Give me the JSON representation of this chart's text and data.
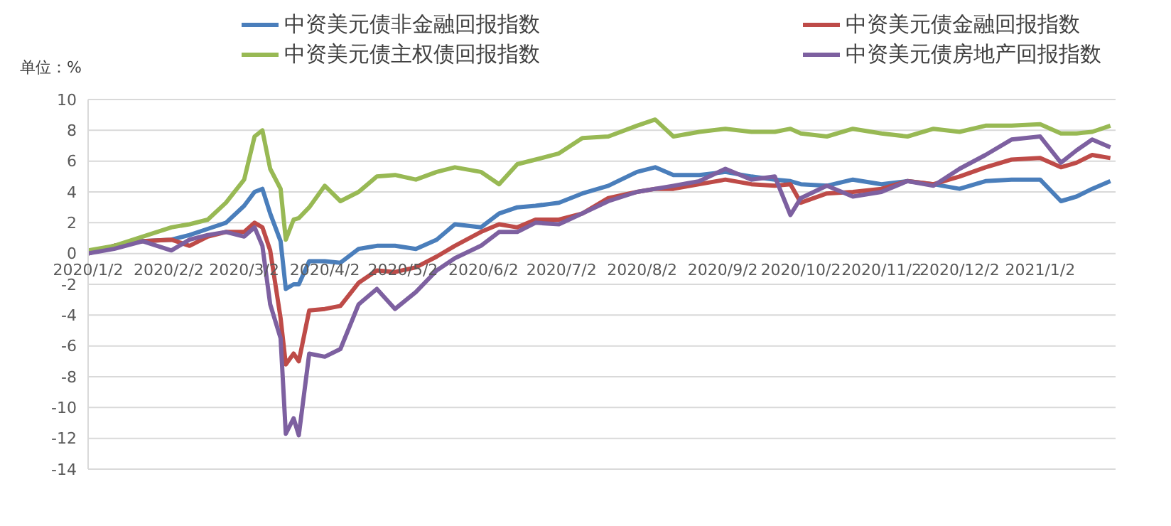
{
  "chart_data": {
    "type": "line",
    "ylabel": "单位：%",
    "x": [
      "2020-01-02",
      "2020-01-12",
      "2020-01-23",
      "2020-02-03",
      "2020-02-10",
      "2020-02-17",
      "2020-02-24",
      "2020-03-02",
      "2020-03-06",
      "2020-03-09",
      "2020-03-12",
      "2020-03-16",
      "2020-03-18",
      "2020-03-21",
      "2020-03-23",
      "2020-03-27",
      "2020-04-02",
      "2020-04-08",
      "2020-04-15",
      "2020-04-22",
      "2020-04-29",
      "2020-05-07",
      "2020-05-15",
      "2020-05-22",
      "2020-06-01",
      "2020-06-08",
      "2020-06-15",
      "2020-06-22",
      "2020-07-01",
      "2020-07-10",
      "2020-07-20",
      "2020-07-31",
      "2020-08-07",
      "2020-08-14",
      "2020-08-24",
      "2020-09-03",
      "2020-09-13",
      "2020-09-22",
      "2020-09-28",
      "2020-10-02",
      "2020-10-12",
      "2020-10-22",
      "2020-11-02",
      "2020-11-12",
      "2020-11-22",
      "2020-12-02",
      "2020-12-12",
      "2020-12-22",
      "2021-01-02",
      "2021-01-10",
      "2021-01-16",
      "2021-01-22",
      "2021-01-29"
    ],
    "series": [
      {
        "name": "中资美元债非金融回报指数",
        "color": "#4a7ebb",
        "values": [
          0,
          0.5,
          0.8,
          0.9,
          1.2,
          1.6,
          2.0,
          3.1,
          4.0,
          4.2,
          2.6,
          0.8,
          -2.3,
          -2.0,
          -2.0,
          -0.5,
          -0.5,
          -0.6,
          0.3,
          0.5,
          0.5,
          0.3,
          0.9,
          1.9,
          1.7,
          2.6,
          3.0,
          3.1,
          3.3,
          3.9,
          4.4,
          5.3,
          5.6,
          5.1,
          5.1,
          5.3,
          5.0,
          4.8,
          4.7,
          4.5,
          4.4,
          4.8,
          4.5,
          4.7,
          4.5,
          4.2,
          4.7,
          4.8,
          4.8,
          3.4,
          3.7,
          4.2,
          4.7
        ]
      },
      {
        "name": "中资美元债金融回报指数",
        "color": "#be4b48",
        "values": [
          0,
          0.5,
          0.8,
          0.9,
          0.5,
          1.1,
          1.4,
          1.4,
          2.0,
          1.7,
          0.2,
          -4.2,
          -7.2,
          -6.5,
          -7.0,
          -3.7,
          -3.6,
          -3.4,
          -1.9,
          -1.1,
          -1.2,
          -0.9,
          -0.2,
          0.5,
          1.4,
          1.9,
          1.7,
          2.2,
          2.2,
          2.6,
          3.6,
          4.0,
          4.2,
          4.2,
          4.5,
          4.8,
          4.5,
          4.4,
          4.5,
          3.3,
          3.9,
          4.0,
          4.2,
          4.7,
          4.5,
          5.0,
          5.6,
          6.1,
          6.2,
          5.6,
          5.9,
          6.4,
          6.2
        ]
      },
      {
        "name": "中资美元债主权债回报指数",
        "color": "#98b954",
        "values": [
          0.2,
          0.5,
          1.1,
          1.7,
          1.9,
          2.2,
          3.3,
          4.8,
          7.6,
          8.0,
          5.5,
          4.2,
          0.9,
          2.2,
          2.3,
          3.0,
          4.4,
          3.4,
          4.0,
          5.0,
          5.1,
          4.8,
          5.3,
          5.6,
          5.3,
          4.5,
          5.8,
          6.1,
          6.5,
          7.5,
          7.6,
          8.3,
          8.7,
          7.6,
          7.9,
          8.1,
          7.9,
          7.9,
          8.1,
          7.8,
          7.6,
          8.1,
          7.8,
          7.6,
          8.1,
          7.9,
          8.3,
          8.3,
          8.4,
          7.8,
          7.8,
          7.9,
          8.3
        ]
      },
      {
        "name": "中资美元债房地产回报指数",
        "color": "#7d60a0",
        "values": [
          0,
          0.3,
          0.8,
          0.2,
          0.9,
          1.2,
          1.4,
          1.1,
          1.7,
          0.5,
          -3.3,
          -5.5,
          -11.7,
          -10.7,
          -11.8,
          -6.5,
          -6.7,
          -6.2,
          -3.3,
          -2.3,
          -3.6,
          -2.5,
          -1.1,
          -0.3,
          0.5,
          1.4,
          1.4,
          2.0,
          1.9,
          2.6,
          3.4,
          4.0,
          4.2,
          4.4,
          4.7,
          5.5,
          4.8,
          5.0,
          2.5,
          3.6,
          4.4,
          3.7,
          4.0,
          4.7,
          4.4,
          5.5,
          6.4,
          7.4,
          7.6,
          5.9,
          6.7,
          7.4,
          6.9
        ]
      }
    ],
    "xlim": [
      "2020-01-02",
      "2021-01-31"
    ],
    "xticks": [
      {
        "value": "2020-01-02",
        "label": "2020/1/2"
      },
      {
        "value": "2020-02-02",
        "label": "2020/2/2"
      },
      {
        "value": "2020-03-02",
        "label": "2020/3/2"
      },
      {
        "value": "2020-04-02",
        "label": "2020/4/2"
      },
      {
        "value": "2020-05-02",
        "label": "2020/5/2"
      },
      {
        "value": "2020-06-02",
        "label": "2020/6/2"
      },
      {
        "value": "2020-07-02",
        "label": "2020/7/2"
      },
      {
        "value": "2020-08-02",
        "label": "2020/8/2"
      },
      {
        "value": "2020-09-02",
        "label": "2020/9/2"
      },
      {
        "value": "2020-10-02",
        "label": "2020/10/2"
      },
      {
        "value": "2020-11-02",
        "label": "2020/11/2"
      },
      {
        "value": "2020-12-02",
        "label": "2020/12/2"
      },
      {
        "value": "2021-01-02",
        "label": "2021/1/2"
      }
    ],
    "ylim": [
      -14,
      10
    ],
    "yticks": [
      -14,
      -12,
      -10,
      -8,
      -6,
      -4,
      -2,
      0,
      2,
      4,
      6,
      8,
      10
    ],
    "grid": "y",
    "legend": "top",
    "marker": "none",
    "line_style": "solid"
  }
}
